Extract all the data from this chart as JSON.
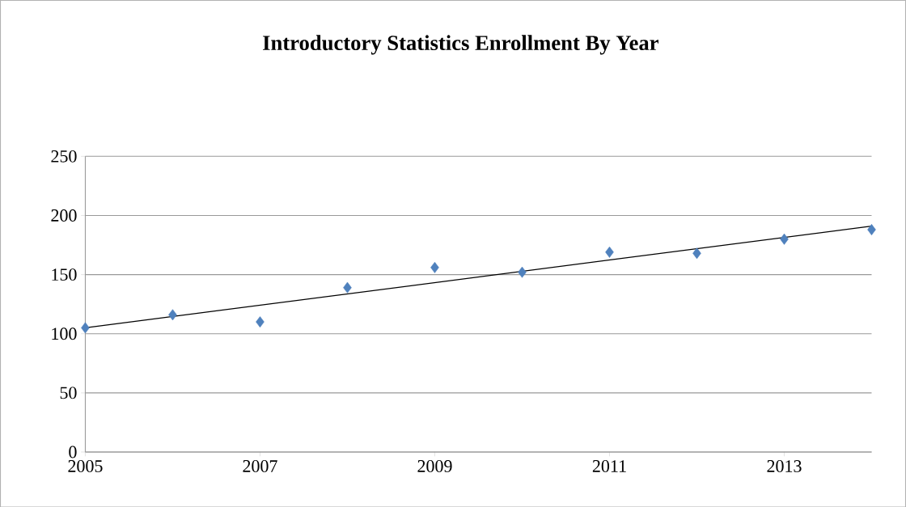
{
  "chart_data": {
    "type": "scatter",
    "title": "Introductory Statistics Enrollment By Year",
    "series": [
      {
        "color": "#4f81bd",
        "marker": "diamond",
        "x": [
          2005,
          2006,
          2007,
          2008,
          2009,
          2010,
          2011,
          2012,
          2013,
          2014
        ],
        "values": [
          105,
          116,
          110,
          139,
          156,
          152,
          169,
          168,
          180,
          188
        ]
      },
      {
        "type": "line",
        "color": "#000000",
        "marker": "none",
        "x": [
          2005,
          2014
        ],
        "values": [
          105,
          191
        ]
      }
    ],
    "xlim": [
      2005,
      2014
    ],
    "ylim": [
      0,
      250
    ],
    "xticks": [
      2005,
      2007,
      2009,
      2011,
      2013
    ],
    "yticks": [
      0,
      50,
      100,
      150,
      200,
      250
    ],
    "grid": "y"
  }
}
